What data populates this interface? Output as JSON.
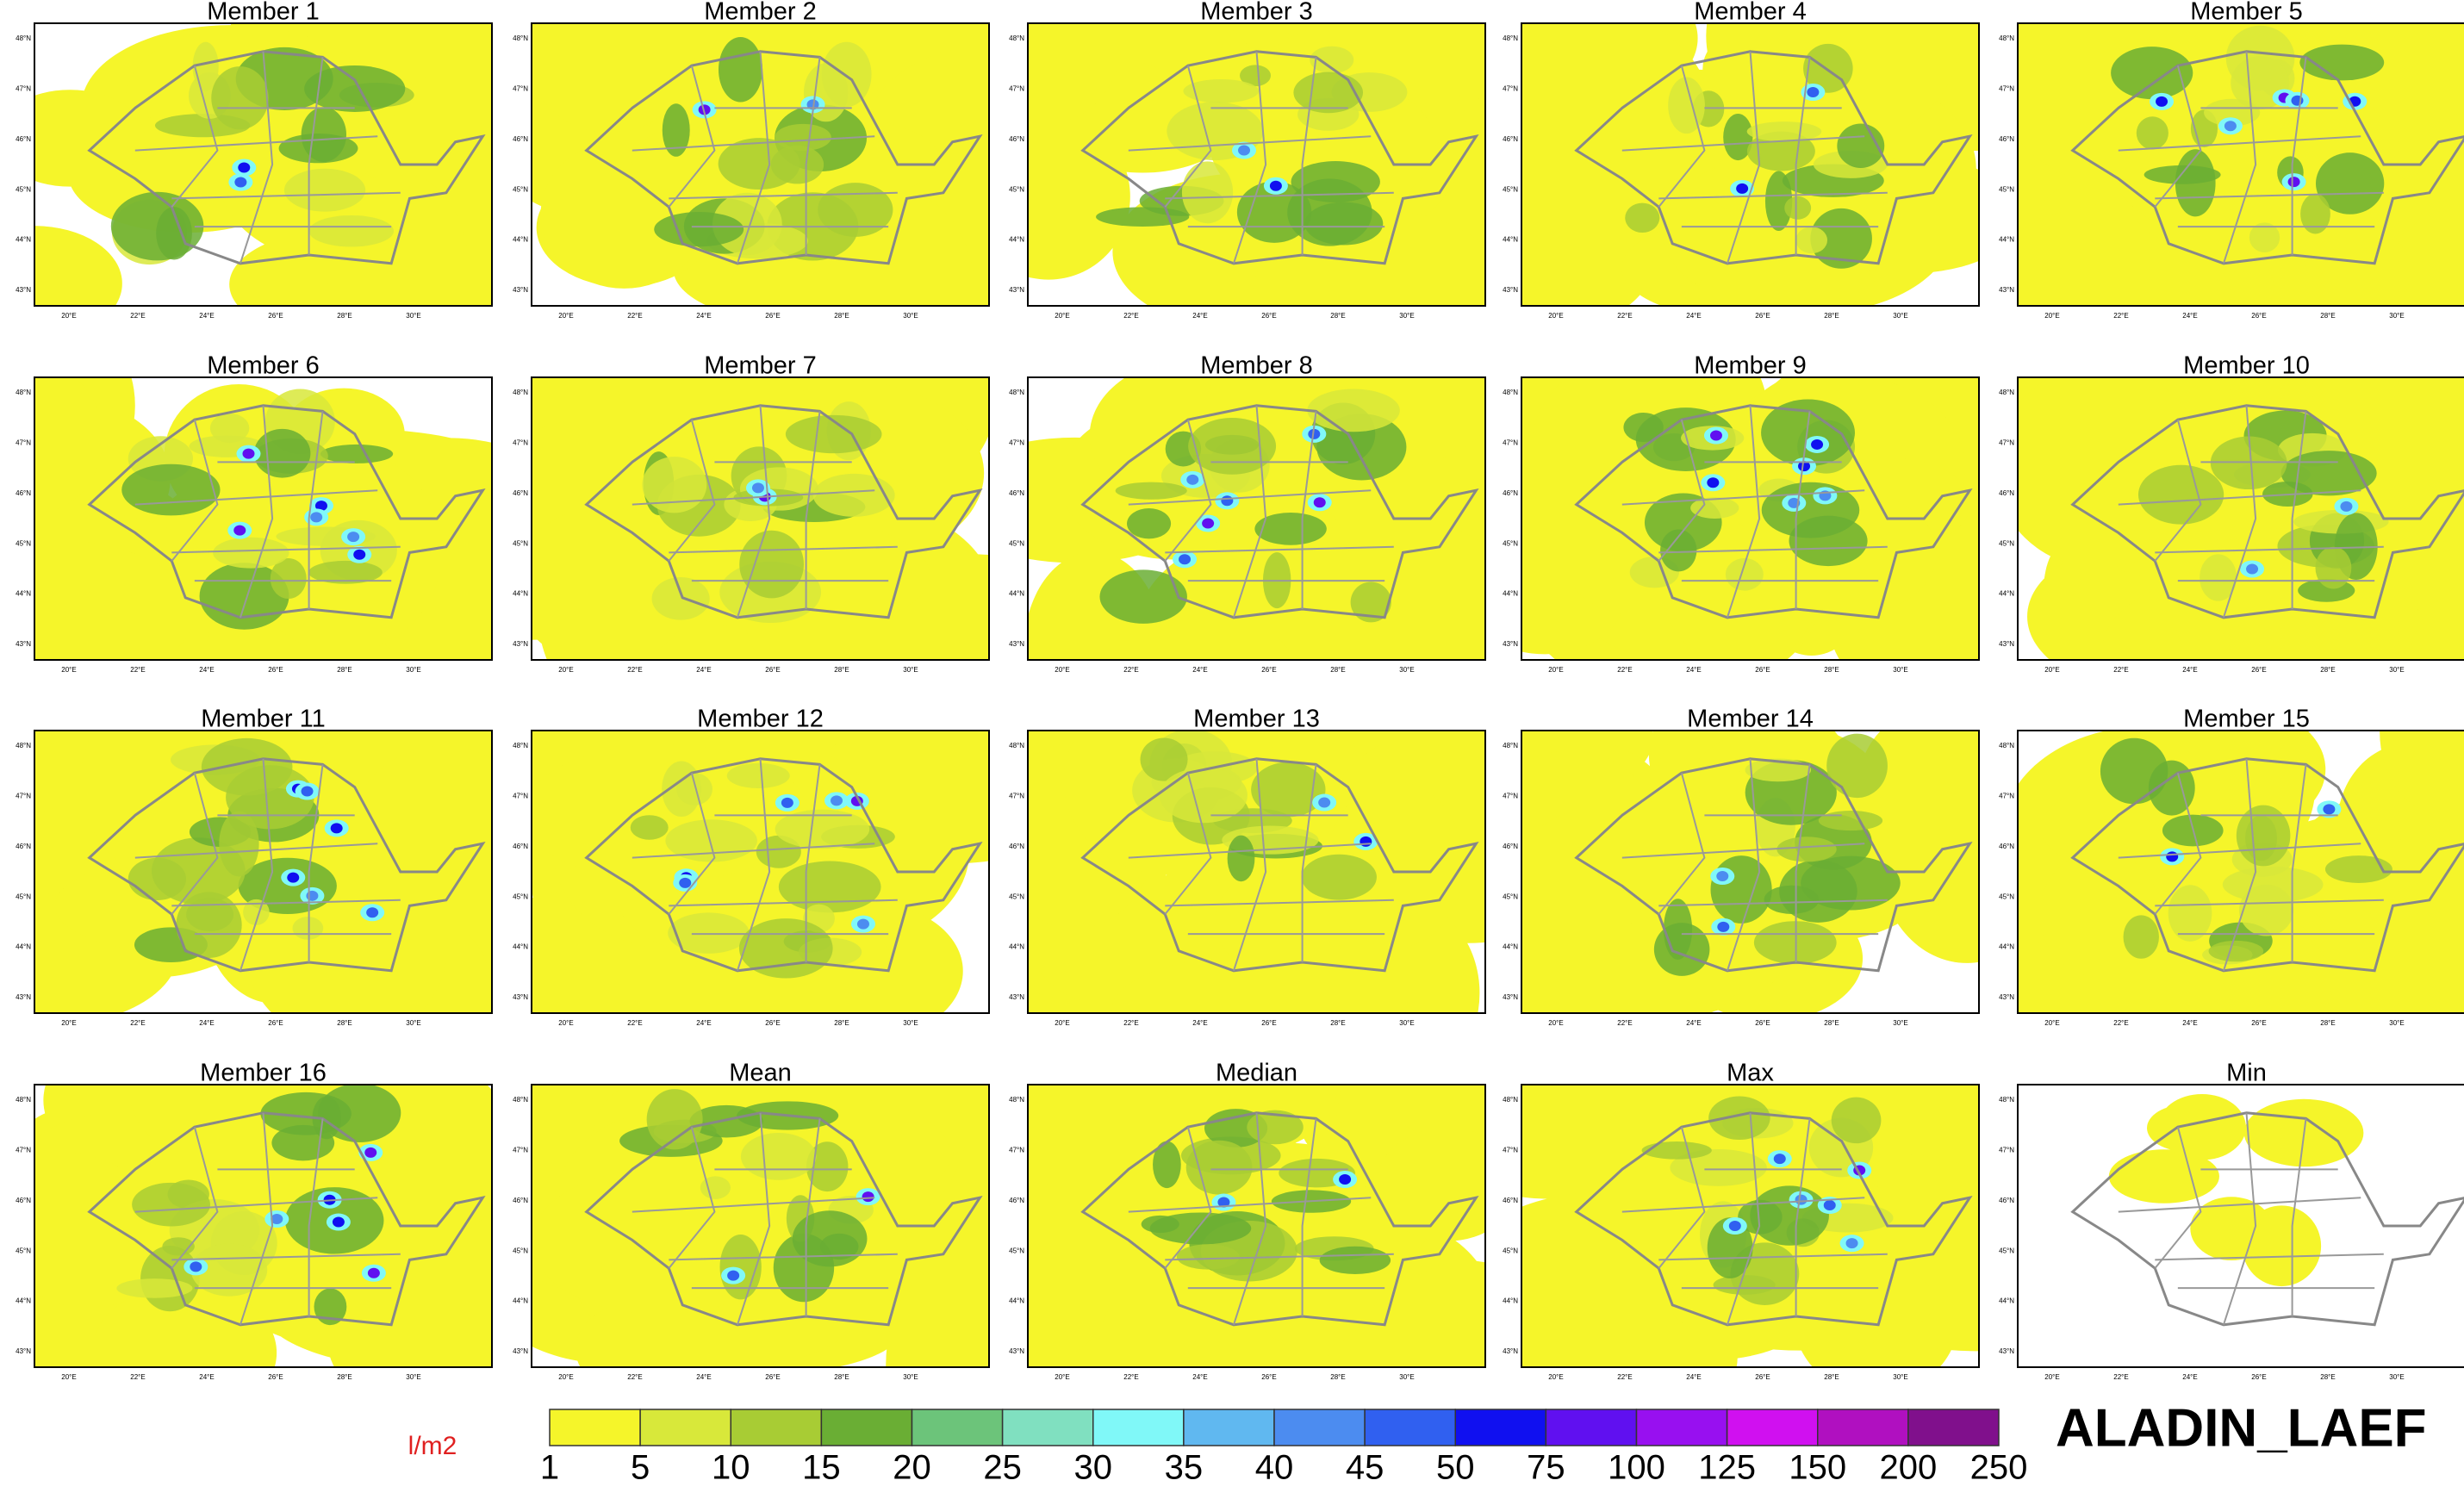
{
  "panels": [
    "Member 1",
    "Member 2",
    "Member 3",
    "Member 4",
    "Member 5",
    "Member 6",
    "Member 7",
    "Member 8",
    "Member 9",
    "Member 10",
    "Member 11",
    "Member 12",
    "Member 13",
    "Member 14",
    "Member 15",
    "Member 16",
    "Mean",
    "Median",
    "Max",
    "Min"
  ],
  "lat_labels": [
    "48°N",
    "47°N",
    "46°N",
    "45°N",
    "44°N",
    "43°N"
  ],
  "lon_labels": [
    "20°E",
    "22°E",
    "24°E",
    "26°E",
    "28°E",
    "30°E"
  ],
  "colorbar": {
    "unit": "l/m2",
    "levels": [
      1,
      5,
      10,
      15,
      20,
      25,
      30,
      35,
      40,
      45,
      50,
      75,
      100,
      125,
      150,
      200,
      250
    ],
    "colors": [
      "#f5f52a",
      "#d8e83a",
      "#a8cc34",
      "#6aae34",
      "#6cc47a",
      "#80e0c0",
      "#80f8f8",
      "#60b8f0",
      "#4c8cf0",
      "#3060f0",
      "#1010f0",
      "#6010f0",
      "#9810f0",
      "#d010f0",
      "#b010c0",
      "#80108c"
    ]
  },
  "brand": "ALADIN_LAEF"
}
